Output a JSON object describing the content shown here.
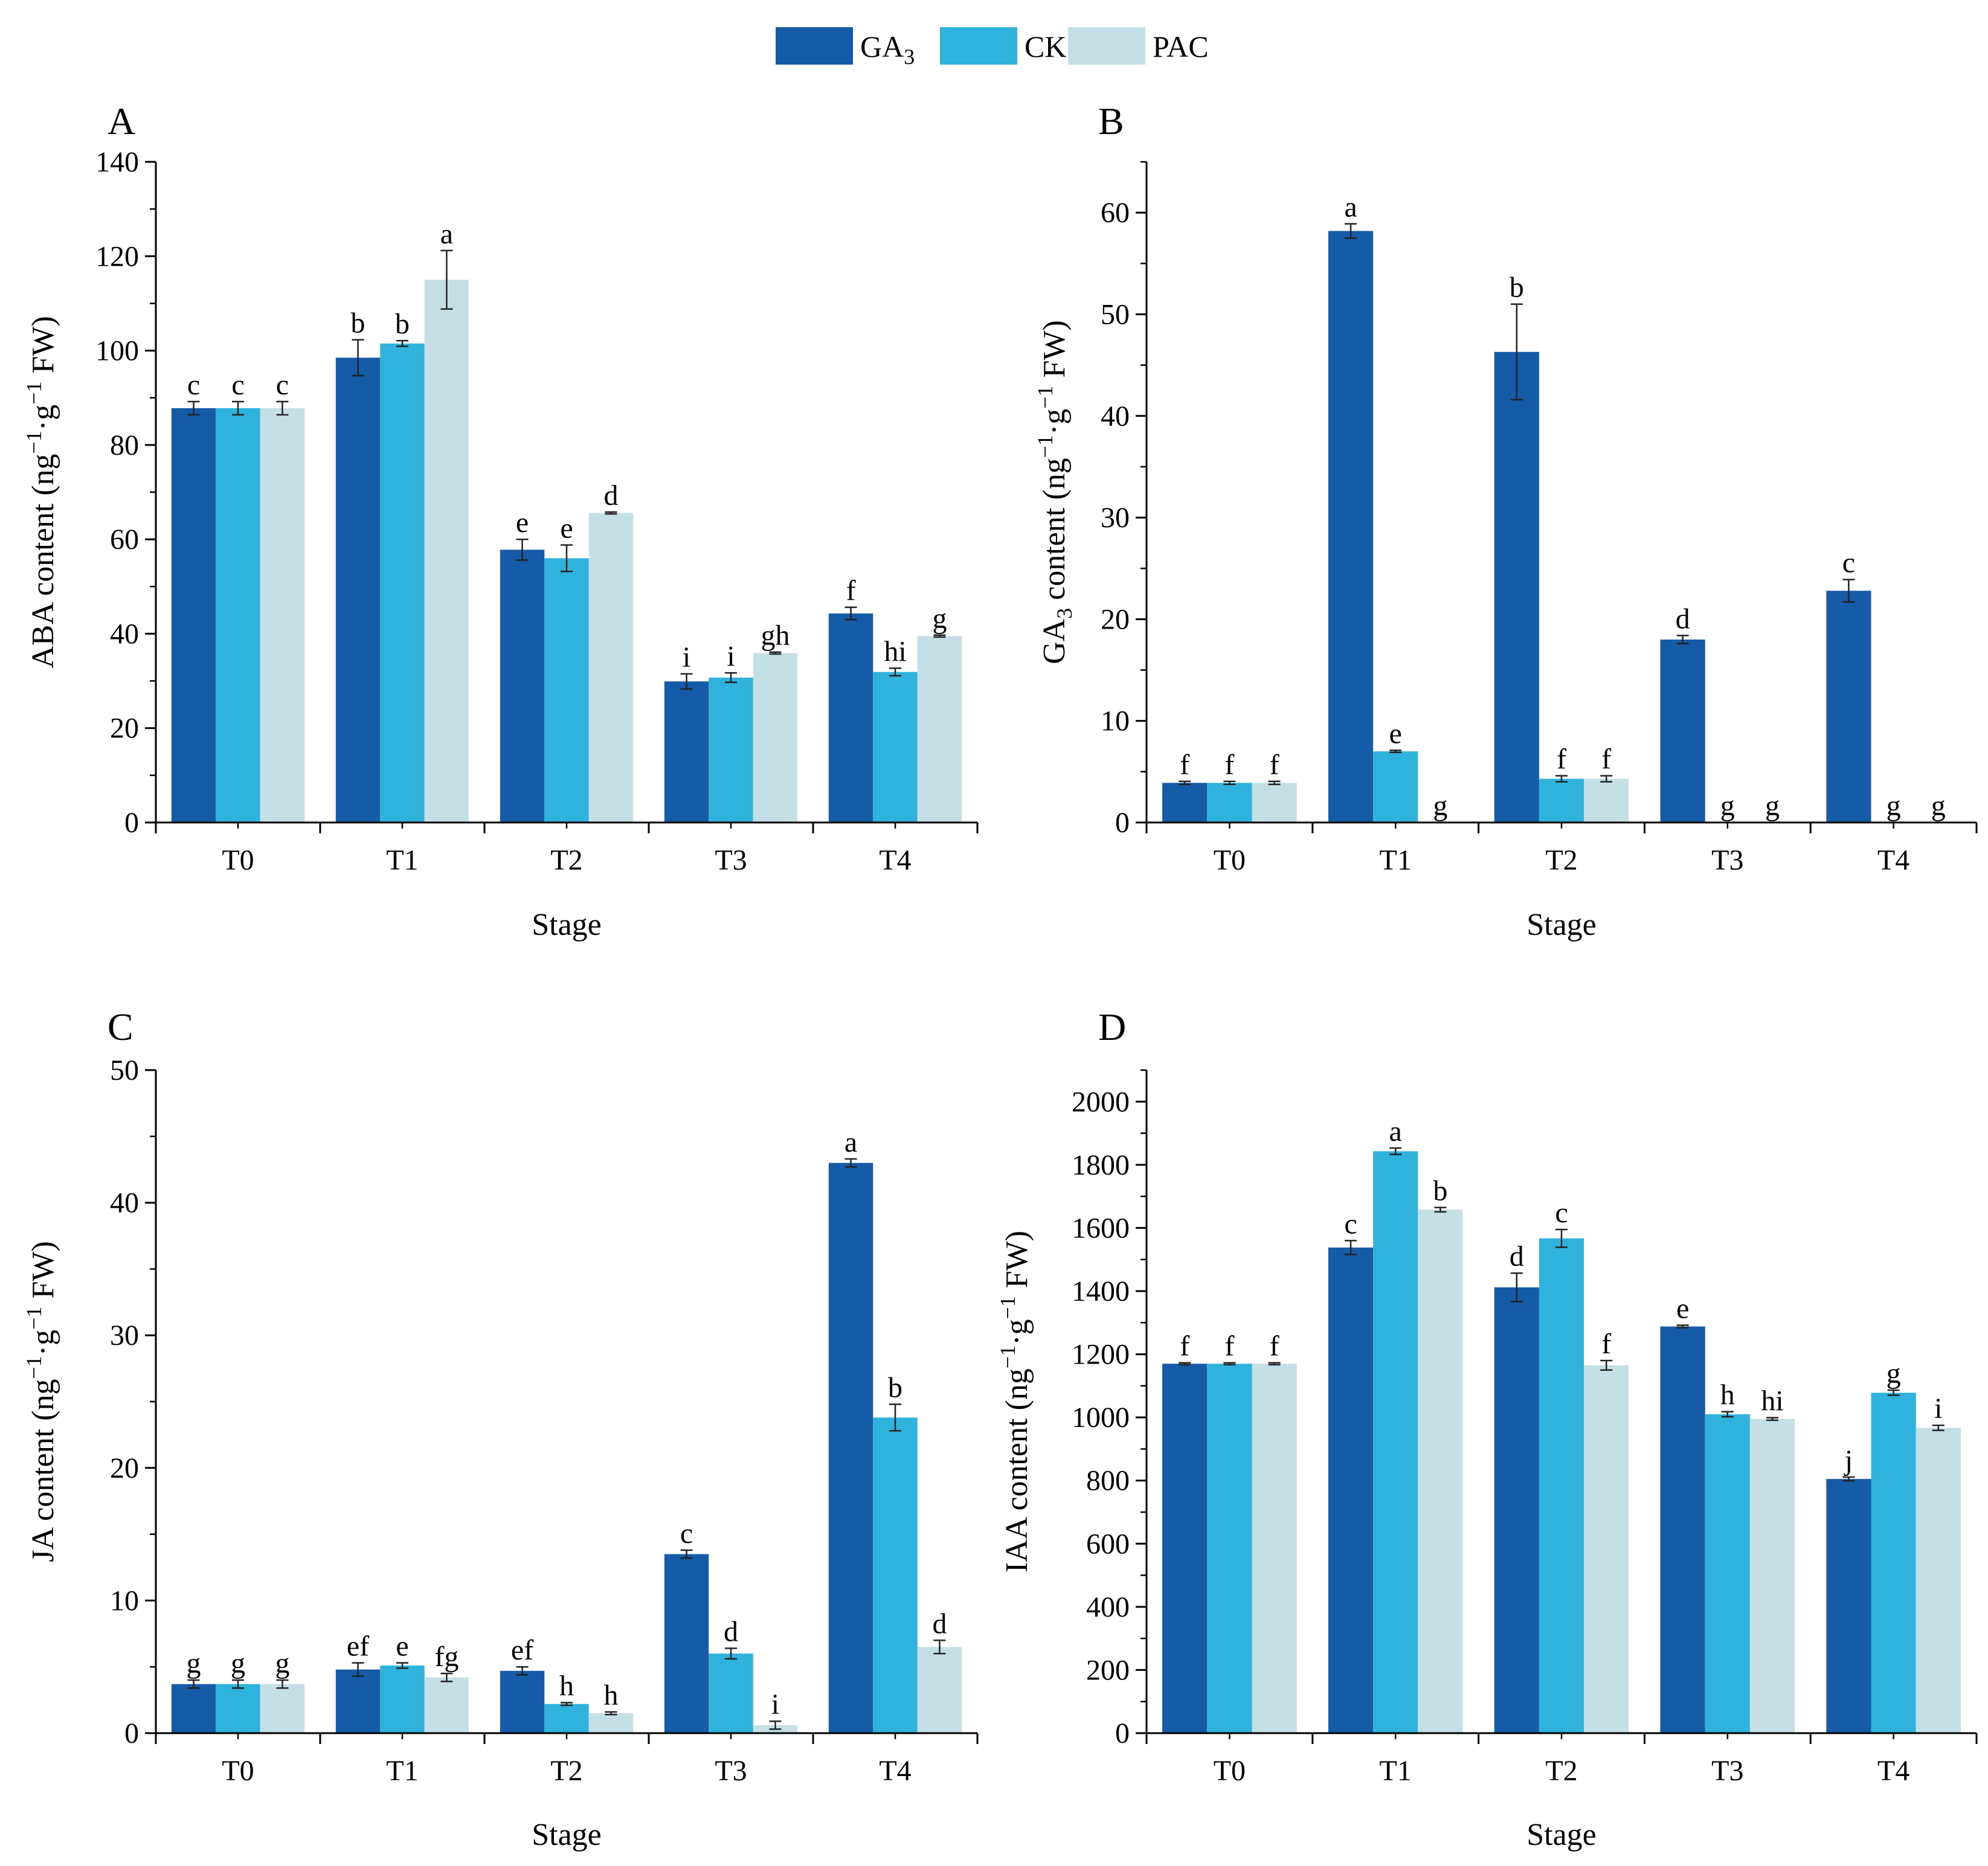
{
  "legend": {
    "items": [
      {
        "name": "GA",
        "sub": "3",
        "color": "#155BA8"
      },
      {
        "name": "CK",
        "sub": "",
        "color": "#2FB3DC"
      },
      {
        "name": "PAC",
        "sub": "",
        "color": "#C4DFE6"
      }
    ]
  },
  "chart_data": [
    {
      "type": "bar",
      "panel": "A",
      "xlabel": "Stage",
      "ylabel": "ABA content (ng⁻¹·g⁻¹ FW)",
      "ylabel_parts": [
        [
          "ABA content (ng",
          ""
        ],
        [
          "−1",
          "sup"
        ],
        [
          "·g",
          ""
        ],
        [
          "−1",
          "sup"
        ],
        [
          " FW)",
          ""
        ]
      ],
      "categories": [
        "T0",
        "T1",
        "T2",
        "T3",
        "T4"
      ],
      "ylim": [
        0,
        140
      ],
      "yticks": [
        0,
        20,
        40,
        60,
        80,
        100,
        120,
        140
      ],
      "series": [
        {
          "name": "GA3",
          "values": [
            87.8,
            98.5,
            57.8,
            29.9,
            44.3
          ],
          "errors": [
            1.4,
            3.8,
            2.2,
            1.6,
            1.3
          ],
          "letters": [
            "c",
            "b",
            "e",
            "i",
            "f"
          ]
        },
        {
          "name": "CK",
          "values": [
            87.8,
            101.5,
            56.0,
            30.7,
            31.9
          ],
          "errors": [
            1.4,
            0.6,
            2.8,
            1.0,
            0.8
          ],
          "letters": [
            "c",
            "b",
            "e",
            "i",
            "hi"
          ]
        },
        {
          "name": "PAC",
          "values": [
            87.8,
            115.0,
            65.6,
            35.9,
            39.5
          ],
          "errors": [
            1.4,
            6.2,
            0.2,
            0.2,
            0.2
          ],
          "letters": [
            "c",
            "a",
            "d",
            "gh",
            "g"
          ]
        }
      ]
    },
    {
      "type": "bar",
      "panel": "B",
      "xlabel": "Stage",
      "ylabel": "GA3 content (ng⁻¹·g⁻¹ FW)",
      "ylabel_parts": [
        [
          "GA",
          ""
        ],
        [
          "3",
          "sub"
        ],
        [
          " content (ng",
          ""
        ],
        [
          "−1",
          "sup"
        ],
        [
          "·g",
          ""
        ],
        [
          "−1",
          "sup"
        ],
        [
          " FW)",
          ""
        ]
      ],
      "categories": [
        "T0",
        "T1",
        "T2",
        "T3",
        "T4"
      ],
      "ylim": [
        0,
        65
      ],
      "yticks": [
        0,
        10,
        20,
        30,
        40,
        50,
        60
      ],
      "series": [
        {
          "name": "GA3",
          "values": [
            3.9,
            58.2,
            46.3,
            18.0,
            22.8
          ],
          "errors": [
            0.15,
            0.7,
            4.7,
            0.4,
            1.1
          ],
          "letters": [
            "f",
            "a",
            "b",
            "d",
            "c"
          ]
        },
        {
          "name": "CK",
          "values": [
            3.9,
            7.0,
            4.3,
            0,
            0
          ],
          "errors": [
            0.15,
            0.1,
            0.3,
            0,
            0
          ],
          "letters": [
            "f",
            "e",
            "f",
            "g",
            "g"
          ]
        },
        {
          "name": "PAC",
          "values": [
            3.9,
            0,
            4.3,
            0,
            0
          ],
          "errors": [
            0.15,
            0,
            0.3,
            0,
            0
          ],
          "letters": [
            "f",
            "g",
            "f",
            "g",
            "g"
          ]
        }
      ]
    },
    {
      "type": "bar",
      "panel": "C",
      "xlabel": "Stage",
      "ylabel": "JA content (ng⁻¹·g⁻¹ FW)",
      "ylabel_parts": [
        [
          "JA content (ng",
          ""
        ],
        [
          "−1",
          "sup"
        ],
        [
          "·g",
          ""
        ],
        [
          "−1",
          "sup"
        ],
        [
          " FW)",
          ""
        ]
      ],
      "categories": [
        "T0",
        "T1",
        "T2",
        "T3",
        "T4"
      ],
      "ylim": [
        0,
        50
      ],
      "yticks": [
        0,
        10,
        20,
        30,
        40,
        50
      ],
      "series": [
        {
          "name": "GA3",
          "values": [
            3.7,
            4.8,
            4.7,
            13.5,
            43.0
          ],
          "errors": [
            0.3,
            0.5,
            0.3,
            0.3,
            0.3
          ],
          "letters": [
            "g",
            "ef",
            "ef",
            "c",
            "a"
          ]
        },
        {
          "name": "CK",
          "values": [
            3.7,
            5.1,
            2.2,
            6.0,
            23.8
          ],
          "errors": [
            0.3,
            0.2,
            0.1,
            0.4,
            1.0
          ],
          "letters": [
            "g",
            "e",
            "h",
            "d",
            "b"
          ]
        },
        {
          "name": "PAC",
          "values": [
            3.7,
            4.2,
            1.5,
            0.6,
            6.5
          ],
          "errors": [
            0.3,
            0.3,
            0.1,
            0.3,
            0.5
          ],
          "letters": [
            "g",
            "fg",
            "h",
            "i",
            "d"
          ]
        }
      ]
    },
    {
      "type": "bar",
      "panel": "D",
      "xlabel": "Stage",
      "ylabel": "IAA content (ng⁻¹·g⁻¹ FW)",
      "ylabel_parts": [
        [
          "IAA content (ng",
          ""
        ],
        [
          "−1",
          "sup"
        ],
        [
          "·g",
          ""
        ],
        [
          "−1",
          "sup"
        ],
        [
          " FW)",
          ""
        ]
      ],
      "categories": [
        "T0",
        "T1",
        "T2",
        "T3",
        "T4"
      ],
      "ylim": [
        0,
        2100
      ],
      "yticks": [
        0,
        200,
        400,
        600,
        800,
        1000,
        1200,
        1400,
        1600,
        1800,
        2000
      ],
      "series": [
        {
          "name": "GA3",
          "values": [
            1170,
            1538,
            1412,
            1288,
            805
          ],
          "errors": [
            3,
            22,
            45,
            4,
            6
          ],
          "letters": [
            "f",
            "c",
            "d",
            "e",
            "j"
          ]
        },
        {
          "name": "CK",
          "values": [
            1170,
            1843,
            1567,
            1010,
            1078
          ],
          "errors": [
            3,
            10,
            28,
            8,
            8
          ],
          "letters": [
            "f",
            "a",
            "c",
            "h",
            "g"
          ]
        },
        {
          "name": "PAC",
          "values": [
            1170,
            1658,
            1165,
            995,
            967
          ],
          "errors": [
            3,
            7,
            15,
            4,
            8
          ],
          "letters": [
            "f",
            "b",
            "f",
            "hi",
            "i"
          ]
        }
      ]
    }
  ]
}
